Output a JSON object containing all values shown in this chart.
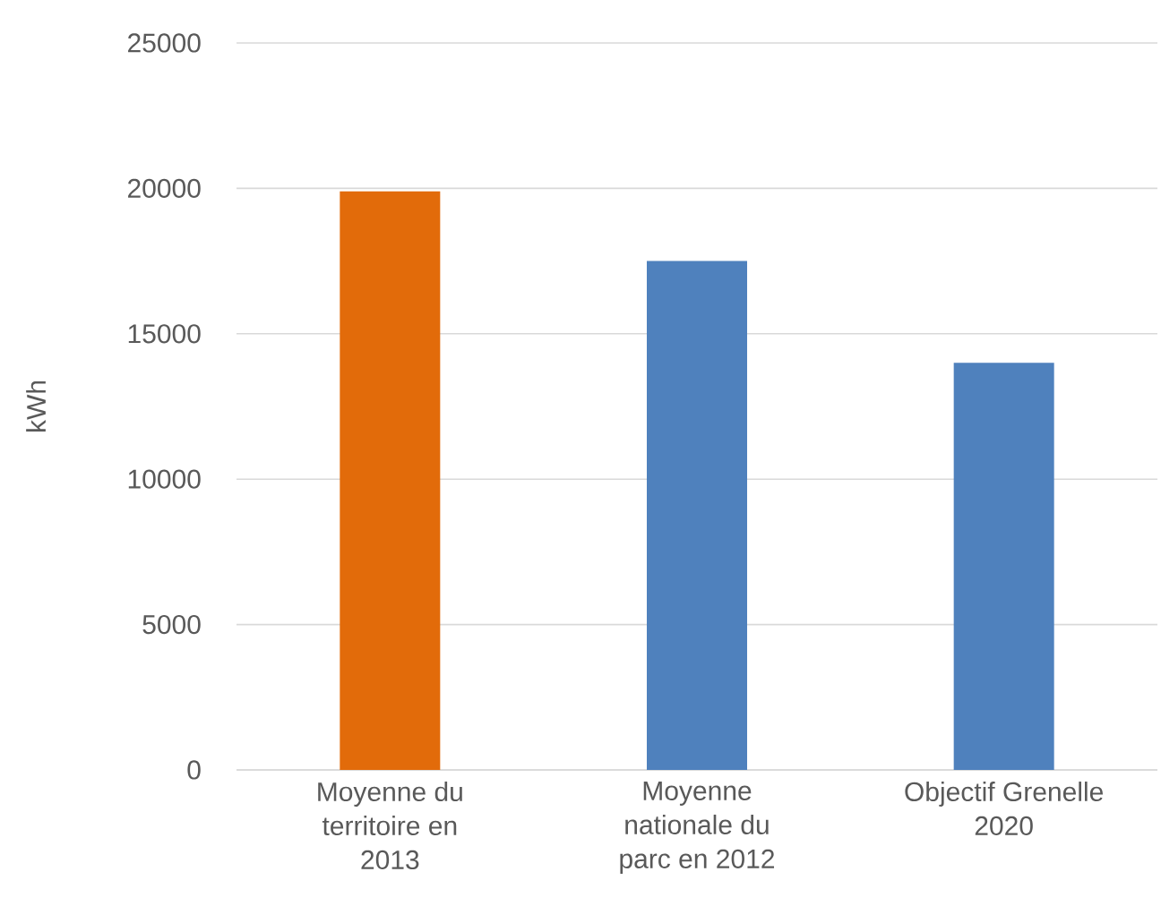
{
  "chart_data": {
    "type": "bar",
    "ylabel": "kWh",
    "categories": [
      "Moyenne du territoire en 2013",
      "Moyenne nationale du parc en 2012",
      "Objectif Grenelle 2020"
    ],
    "values": [
      19900,
      17500,
      14000
    ],
    "colors": [
      "#e26b0a",
      "#4f81bd",
      "#4f81bd"
    ],
    "ylim": [
      0,
      25000
    ],
    "yticks": [
      0,
      5000,
      10000,
      15000,
      20000,
      25000
    ],
    "grid": "y"
  }
}
